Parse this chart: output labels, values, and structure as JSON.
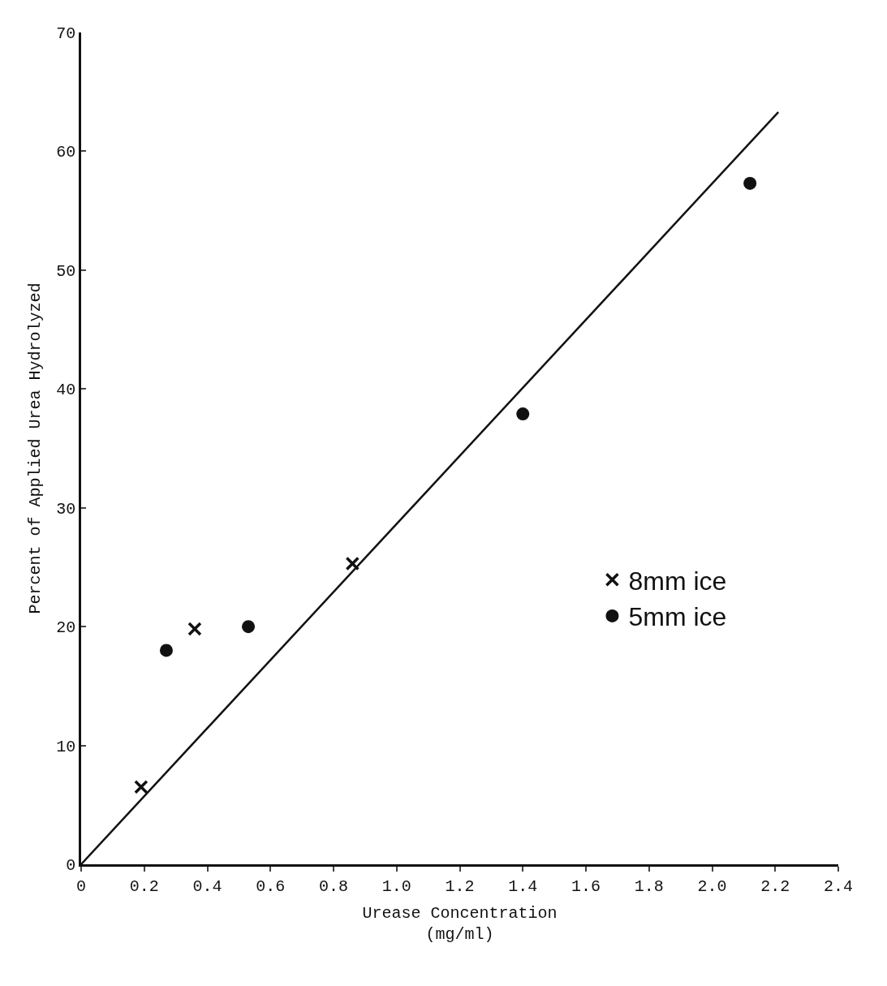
{
  "chart_data": {
    "type": "scatter",
    "xlabel": "Urease Concentration\n(mg/ml)",
    "ylabel": "Percent of Applied Urea Hydrolyzed",
    "xlim": [
      0,
      2.4
    ],
    "ylim": [
      0,
      70
    ],
    "xticks": [
      0,
      0.2,
      0.4,
      0.6,
      0.8,
      {
        "value": 1.0,
        "label": "1.0"
      },
      1.2,
      1.4,
      1.6,
      1.8,
      {
        "value": 2.0,
        "label": "2.0"
      },
      2.2,
      2.4
    ],
    "yticks": [
      0,
      10,
      20,
      30,
      40,
      50,
      60,
      70
    ],
    "legend": "right",
    "series": [
      {
        "name": "8mm ice",
        "marker": "cross",
        "color": "#111111",
        "x": [
          0.19,
          0.36,
          0.86
        ],
        "values": [
          6.5,
          19.8,
          25.3
        ]
      },
      {
        "name": "5mm ice",
        "marker": "circle",
        "color": "#111111",
        "x": [
          0.27,
          0.53,
          1.4,
          2.12
        ],
        "values": [
          18.0,
          20.0,
          37.9,
          57.3
        ]
      },
      {
        "type": "line",
        "line_style": "solid",
        "marker": "none",
        "color": "#111111",
        "x": [
          0,
          2.21
        ],
        "values": [
          0,
          63.3
        ]
      }
    ]
  }
}
